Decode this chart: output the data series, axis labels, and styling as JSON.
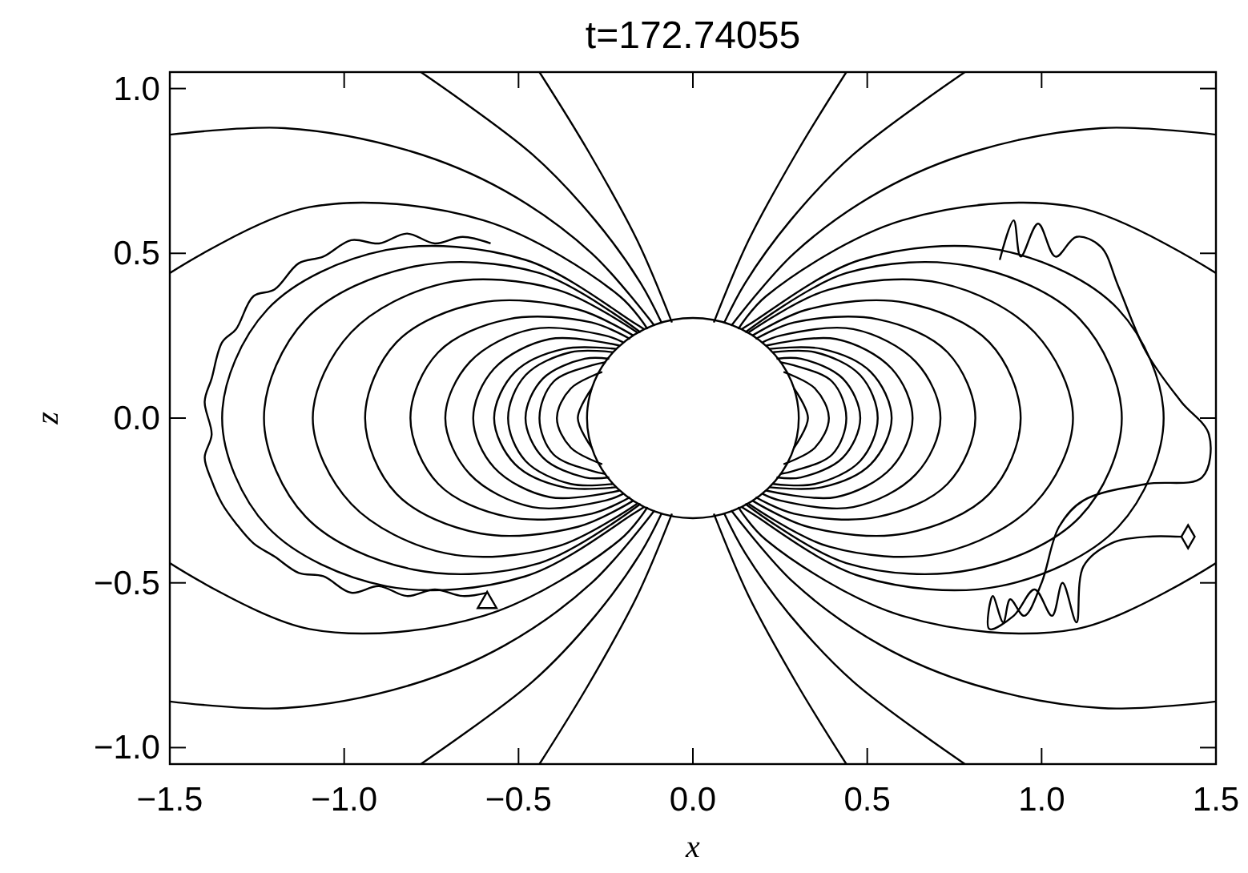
{
  "chart_data": {
    "type": "line",
    "title": "t=172.74055",
    "xlabel": "x",
    "ylabel": "z",
    "xlim": [
      -1.5,
      1.5
    ],
    "ylim": [
      -1.05,
      1.05
    ],
    "xticks": [
      {
        "value": -1.5,
        "label": "−1.5"
      },
      {
        "value": -1.0,
        "label": "−1.0"
      },
      {
        "value": -0.5,
        "label": "−0.5"
      },
      {
        "value": 0,
        "label": "0.0"
      },
      {
        "value": 0.5,
        "label": "0.5"
      },
      {
        "value": 1.0,
        "label": "1.0"
      },
      {
        "value": 1.5,
        "label": "1.5"
      }
    ],
    "yticks": [
      {
        "value": -1.0,
        "label": "−1.0"
      },
      {
        "value": -0.5,
        "label": "−0.5"
      },
      {
        "value": 0,
        "label": "0.0"
      },
      {
        "value": 0.5,
        "label": "0.5"
      },
      {
        "value": 1.0,
        "label": "1.0"
      }
    ],
    "grid": false,
    "marker": "none",
    "line_style": "solid",
    "series": [
      {
        "color": "#000000",
        "x": [
          0.29,
          0.33,
          0.29
        ],
        "values": [
          -0.09,
          0,
          0.09
        ]
      },
      {
        "color": "#000000",
        "x": [
          0.26,
          0.35,
          0.39,
          0.35,
          0.26
        ],
        "values": [
          -0.14,
          -0.09,
          0,
          0.09,
          0.14
        ]
      },
      {
        "color": "#000000",
        "x": [
          0.25,
          0.29,
          0.4,
          0.44,
          0.4,
          0.29,
          0.25
        ],
        "values": [
          -0.17,
          -0.16,
          -0.11,
          0,
          0.11,
          0.16,
          0.17
        ]
      },
      {
        "color": "#000000",
        "x": [
          0.24,
          0.31,
          0.43,
          0.48,
          0.43,
          0.31,
          0.24
        ],
        "values": [
          -0.18,
          -0.18,
          -0.12,
          0,
          0.12,
          0.18,
          0.18
        ]
      },
      {
        "color": "#000000",
        "x": [
          0.23,
          0.35,
          0.48,
          0.53,
          0.48,
          0.35,
          0.23
        ],
        "values": [
          -0.2,
          -0.2,
          -0.13,
          0,
          0.13,
          0.2,
          0.2
        ]
      },
      {
        "color": "#000000",
        "x": [
          0.22,
          0.37,
          0.51,
          0.57,
          0.51,
          0.37,
          0.22
        ],
        "values": [
          -0.21,
          -0.21,
          -0.14,
          0,
          0.14,
          0.21,
          0.21
        ]
      },
      {
        "color": "#000000",
        "x": [
          0.21,
          0.41,
          0.57,
          0.63,
          0.57,
          0.41,
          0.21
        ],
        "values": [
          -0.22,
          -0.24,
          -0.15,
          0,
          0.15,
          0.24,
          0.22
        ]
      },
      {
        "color": "#000000",
        "x": [
          0.2,
          0.25,
          0.46,
          0.64,
          0.71,
          0.64,
          0.46,
          0.25,
          0.2
        ],
        "values": [
          -0.23,
          -0.25,
          -0.27,
          -0.17,
          0,
          0.17,
          0.27,
          0.25,
          0.23
        ]
      },
      {
        "color": "#000000",
        "x": [
          0.18,
          0.29,
          0.53,
          0.73,
          0.81,
          0.73,
          0.53,
          0.29,
          0.18
        ],
        "values": [
          -0.24,
          -0.29,
          -0.3,
          -0.2,
          0,
          0.2,
          0.3,
          0.29,
          0.24
        ]
      },
      {
        "color": "#000000",
        "x": [
          0.17,
          0.33,
          0.61,
          0.85,
          0.94,
          0.85,
          0.61,
          0.33,
          0.17
        ],
        "values": [
          -0.25,
          -0.33,
          -0.35,
          -0.23,
          0,
          0.23,
          0.35,
          0.33,
          0.25
        ]
      },
      {
        "color": "#000000",
        "x": [
          0.16,
          0.39,
          0.71,
          0.98,
          1.09,
          0.98,
          0.71,
          0.39,
          0.16
        ],
        "values": [
          -0.26,
          -0.39,
          -0.41,
          -0.26,
          0,
          0.26,
          0.41,
          0.39,
          0.26
        ]
      },
      {
        "color": "#000000",
        "x": [
          0.15,
          0.44,
          0.8,
          1.11,
          1.23,
          1.11,
          0.8,
          0.44,
          0.15
        ],
        "values": [
          -0.26,
          -0.44,
          -0.46,
          -0.3,
          0,
          0.3,
          0.46,
          0.44,
          0.26
        ]
      },
      {
        "color": "#000000",
        "x": [
          0.14,
          0.17,
          0.48,
          0.88,
          1.22,
          1.35,
          1.22,
          0.88,
          0.48,
          0.17,
          0.14
        ],
        "values": [
          -0.27,
          -0.29,
          -0.48,
          -0.51,
          -0.33,
          0,
          0.33,
          0.51,
          0.48,
          0.29,
          0.27
        ]
      },
      {
        "color": "#000000",
        "x": [
          -0.29,
          -0.33,
          -0.29
        ],
        "values": [
          -0.09,
          0,
          0.09
        ]
      },
      {
        "color": "#000000",
        "x": [
          -0.26,
          -0.35,
          -0.39,
          -0.35,
          -0.26
        ],
        "values": [
          -0.14,
          -0.09,
          0,
          0.09,
          0.14
        ]
      },
      {
        "color": "#000000",
        "x": [
          -0.25,
          -0.29,
          -0.4,
          -0.44,
          -0.4,
          -0.29,
          -0.25
        ],
        "values": [
          -0.17,
          -0.16,
          -0.11,
          0,
          0.11,
          0.16,
          0.17
        ]
      },
      {
        "color": "#000000",
        "x": [
          -0.24,
          -0.31,
          -0.43,
          -0.48,
          -0.43,
          -0.31,
          -0.24
        ],
        "values": [
          -0.18,
          -0.18,
          -0.12,
          0,
          0.12,
          0.18,
          0.18
        ]
      },
      {
        "color": "#000000",
        "x": [
          -0.23,
          -0.35,
          -0.48,
          -0.53,
          -0.48,
          -0.35,
          -0.23
        ],
        "values": [
          -0.2,
          -0.2,
          -0.13,
          0,
          0.13,
          0.2,
          0.2
        ]
      },
      {
        "color": "#000000",
        "x": [
          -0.22,
          -0.37,
          -0.51,
          -0.57,
          -0.51,
          -0.37,
          -0.22
        ],
        "values": [
          -0.21,
          -0.21,
          -0.14,
          0,
          0.14,
          0.21,
          0.21
        ]
      },
      {
        "color": "#000000",
        "x": [
          -0.21,
          -0.41,
          -0.57,
          -0.63,
          -0.57,
          -0.41,
          -0.21
        ],
        "values": [
          -0.22,
          -0.24,
          -0.15,
          0,
          0.15,
          0.24,
          0.22
        ]
      },
      {
        "color": "#000000",
        "x": [
          -0.2,
          -0.25,
          -0.46,
          -0.64,
          -0.71,
          -0.64,
          -0.46,
          -0.25,
          -0.2
        ],
        "values": [
          -0.23,
          -0.25,
          -0.27,
          -0.17,
          0,
          0.17,
          0.27,
          0.25,
          0.23
        ]
      },
      {
        "color": "#000000",
        "x": [
          -0.18,
          -0.29,
          -0.53,
          -0.73,
          -0.81,
          -0.73,
          -0.53,
          -0.29,
          -0.18
        ],
        "values": [
          -0.24,
          -0.29,
          -0.3,
          -0.2,
          0,
          0.2,
          0.3,
          0.29,
          0.24
        ]
      },
      {
        "color": "#000000",
        "x": [
          -0.17,
          -0.33,
          -0.61,
          -0.85,
          -0.94,
          -0.85,
          -0.61,
          -0.33,
          -0.17
        ],
        "values": [
          -0.25,
          -0.33,
          -0.35,
          -0.23,
          0,
          0.23,
          0.35,
          0.33,
          0.25
        ]
      },
      {
        "color": "#000000",
        "x": [
          -0.16,
          -0.39,
          -0.71,
          -0.98,
          -1.09,
          -0.98,
          -0.71,
          -0.39,
          -0.16
        ],
        "values": [
          -0.26,
          -0.39,
          -0.41,
          -0.26,
          0,
          0.26,
          0.41,
          0.39,
          0.26
        ]
      },
      {
        "color": "#000000",
        "x": [
          -0.15,
          -0.44,
          -0.8,
          -1.11,
          -1.23,
          -1.11,
          -0.8,
          -0.44,
          -0.15
        ],
        "values": [
          -0.26,
          -0.44,
          -0.46,
          -0.3,
          0,
          0.3,
          0.46,
          0.44,
          0.26
        ]
      },
      {
        "color": "#000000",
        "x": [
          -0.14,
          -0.17,
          -0.48,
          -0.88,
          -1.22,
          -1.35,
          -1.22,
          -0.88,
          -0.48,
          -0.17,
          -0.14
        ],
        "values": [
          -0.27,
          -0.29,
          -0.48,
          -0.51,
          -0.33,
          0,
          0.33,
          0.51,
          0.48,
          0.29,
          0.27
        ]
      },
      {
        "color": "#000000",
        "x": [
          1.5,
          1.1,
          0.6,
          0.21,
          0.13
        ],
        "values": [
          0.44,
          0.64,
          0.6,
          0.37,
          0.27
        ]
      },
      {
        "color": "#000000",
        "x": [
          1.5,
          1.1,
          0.6,
          0.21,
          0.13
        ],
        "values": [
          -0.44,
          -0.64,
          -0.6,
          -0.37,
          -0.27
        ]
      },
      {
        "color": "#000000",
        "x": [
          -1.5,
          -1.1,
          -0.6,
          -0.21,
          -0.13
        ],
        "values": [
          0.44,
          0.64,
          0.6,
          0.37,
          0.27
        ]
      },
      {
        "color": "#000000",
        "x": [
          -1.5,
          -1.1,
          -0.6,
          -0.21,
          -0.13
        ],
        "values": [
          -0.44,
          -0.64,
          -0.6,
          -0.37,
          -0.27
        ]
      },
      {
        "color": "#000000",
        "x": [
          1.5,
          1.17,
          0.81,
          0.54,
          0.29,
          0.11
        ],
        "values": [
          0.86,
          0.88,
          0.81,
          0.69,
          0.5,
          0.28
        ]
      },
      {
        "color": "#000000",
        "x": [
          1.5,
          1.17,
          0.81,
          0.54,
          0.29,
          0.11
        ],
        "values": [
          -0.86,
          -0.88,
          -0.81,
          -0.69,
          -0.5,
          -0.28
        ]
      },
      {
        "color": "#000000",
        "x": [
          -1.5,
          -1.17,
          -0.81,
          -0.54,
          -0.29,
          -0.11
        ],
        "values": [
          0.86,
          0.88,
          0.81,
          0.69,
          0.5,
          0.28
        ]
      },
      {
        "color": "#000000",
        "x": [
          -1.5,
          -1.17,
          -0.81,
          -0.54,
          -0.29,
          -0.11
        ],
        "values": [
          -0.86,
          -0.88,
          -0.81,
          -0.69,
          -0.5,
          -0.28
        ]
      },
      {
        "color": "#000000",
        "x": [
          0.78,
          0.46,
          0.28,
          0.15,
          0.09
        ],
        "values": [
          1.05,
          0.8,
          0.6,
          0.41,
          0.29
        ]
      },
      {
        "color": "#000000",
        "x": [
          0.78,
          0.46,
          0.28,
          0.15,
          0.09
        ],
        "values": [
          -1.05,
          -0.8,
          -0.6,
          -0.41,
          -0.29
        ]
      },
      {
        "color": "#000000",
        "x": [
          -0.78,
          -0.46,
          -0.28,
          -0.15,
          -0.09
        ],
        "values": [
          1.05,
          0.8,
          0.6,
          0.41,
          0.29
        ]
      },
      {
        "color": "#000000",
        "x": [
          -0.78,
          -0.46,
          -0.28,
          -0.15,
          -0.09
        ],
        "values": [
          -1.05,
          -0.8,
          -0.6,
          -0.41,
          -0.29
        ]
      },
      {
        "color": "#000000",
        "x": [
          0.44,
          0.3,
          0.16,
          0.06
        ],
        "values": [
          1.05,
          0.81,
          0.54,
          0.29
        ]
      },
      {
        "color": "#000000",
        "x": [
          0.44,
          0.3,
          0.16,
          0.06
        ],
        "values": [
          -1.05,
          -0.81,
          -0.54,
          -0.29
        ]
      },
      {
        "color": "#000000",
        "x": [
          -0.44,
          -0.3,
          -0.16,
          -0.06
        ],
        "values": [
          1.05,
          0.81,
          0.54,
          0.29
        ]
      },
      {
        "color": "#000000",
        "x": [
          -0.44,
          -0.3,
          -0.16,
          -0.06
        ],
        "values": [
          -1.05,
          -0.81,
          -0.54,
          -0.29
        ]
      }
    ]
  }
}
